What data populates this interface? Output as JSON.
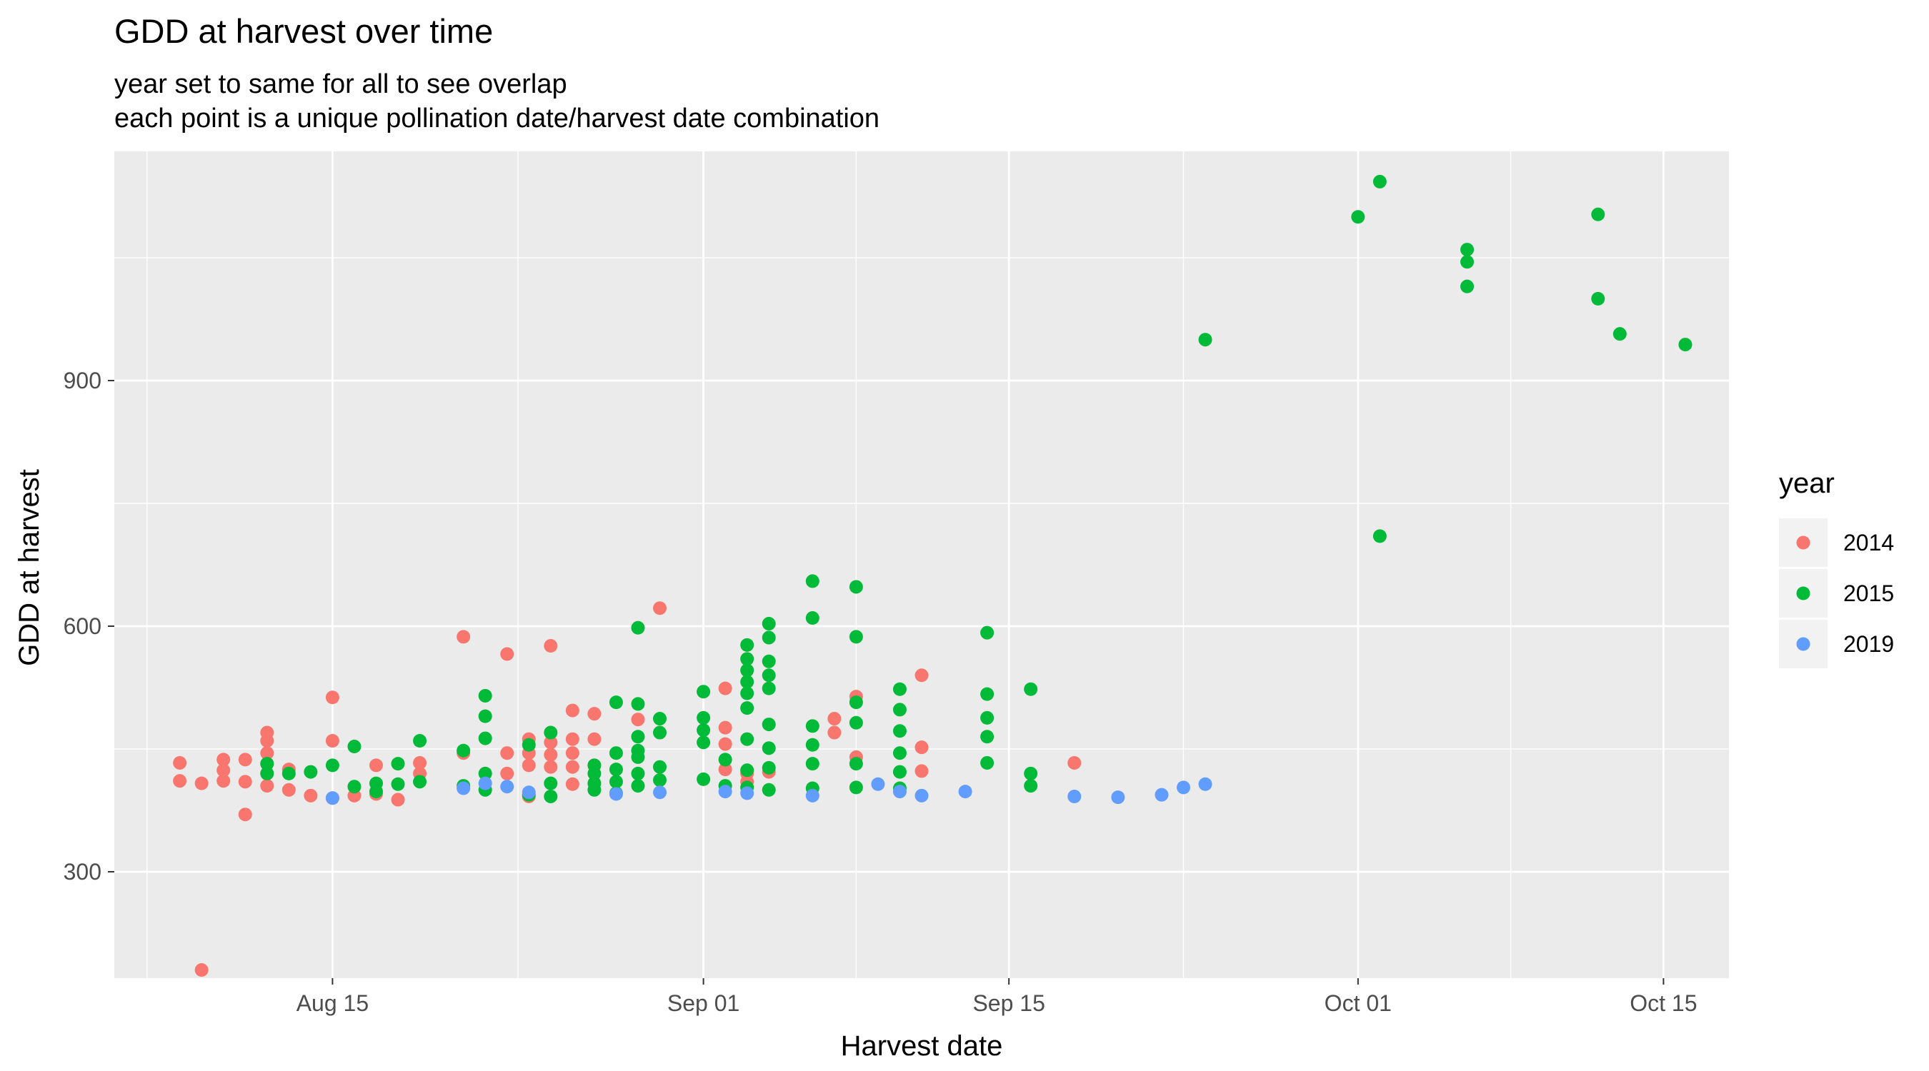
{
  "chart_data": {
    "type": "scatter",
    "title": "GDD at harvest over time",
    "subtitle_lines": [
      "year set to same for all to see overlap",
      "each point is a unique pollination date/harvest date combination"
    ],
    "xlabel": "Harvest date",
    "ylabel": "GDD at harvest",
    "x_type": "date",
    "xlim": [
      "2015-08-05",
      "2015-10-18"
    ],
    "ylim": [
      170,
      1180
    ],
    "x_ticks": [
      {
        "value": "2015-08-15",
        "label": "Aug 15"
      },
      {
        "value": "2015-09-01",
        "label": "Sep 01"
      },
      {
        "value": "2015-09-15",
        "label": "Sep 15"
      },
      {
        "value": "2015-10-01",
        "label": "Oct 01"
      },
      {
        "value": "2015-10-15",
        "label": "Oct 15"
      }
    ],
    "y_ticks": [
      {
        "value": 300,
        "label": "300"
      },
      {
        "value": 600,
        "label": "600"
      },
      {
        "value": 900,
        "label": "900"
      }
    ],
    "grid": true,
    "legend": {
      "title": "year",
      "position": "right"
    },
    "series": [
      {
        "name": "2014",
        "color": "#F8766D",
        "points": [
          [
            "2015-08-08",
            433
          ],
          [
            "2015-08-08",
            411
          ],
          [
            "2015-08-09",
            408
          ],
          [
            "2015-08-09",
            180
          ],
          [
            "2015-08-10",
            437
          ],
          [
            "2015-08-10",
            424
          ],
          [
            "2015-08-10",
            411
          ],
          [
            "2015-08-11",
            437
          ],
          [
            "2015-08-11",
            410
          ],
          [
            "2015-08-11",
            370
          ],
          [
            "2015-08-12",
            470
          ],
          [
            "2015-08-12",
            460
          ],
          [
            "2015-08-12",
            445
          ],
          [
            "2015-08-12",
            432
          ],
          [
            "2015-08-12",
            420
          ],
          [
            "2015-08-12",
            405
          ],
          [
            "2015-08-13",
            425
          ],
          [
            "2015-08-13",
            400
          ],
          [
            "2015-08-14",
            393
          ],
          [
            "2015-08-15",
            513
          ],
          [
            "2015-08-15",
            460
          ],
          [
            "2015-08-15",
            390
          ],
          [
            "2015-08-16",
            393
          ],
          [
            "2015-08-17",
            430
          ],
          [
            "2015-08-17",
            395
          ],
          [
            "2015-08-18",
            388
          ],
          [
            "2015-08-19",
            433
          ],
          [
            "2015-08-19",
            420
          ],
          [
            "2015-08-21",
            587
          ],
          [
            "2015-08-21",
            445
          ],
          [
            "2015-08-23",
            566
          ],
          [
            "2015-08-23",
            445
          ],
          [
            "2015-08-23",
            420
          ],
          [
            "2015-08-24",
            462
          ],
          [
            "2015-08-24",
            445
          ],
          [
            "2015-08-24",
            430
          ],
          [
            "2015-08-24",
            392
          ],
          [
            "2015-08-25",
            576
          ],
          [
            "2015-08-25",
            458
          ],
          [
            "2015-08-25",
            443
          ],
          [
            "2015-08-25",
            428
          ],
          [
            "2015-08-26",
            497
          ],
          [
            "2015-08-26",
            462
          ],
          [
            "2015-08-26",
            445
          ],
          [
            "2015-08-26",
            428
          ],
          [
            "2015-08-26",
            407
          ],
          [
            "2015-08-27",
            493
          ],
          [
            "2015-08-27",
            462
          ],
          [
            "2015-08-27",
            430
          ],
          [
            "2015-08-29",
            486
          ],
          [
            "2015-08-30",
            622
          ],
          [
            "2015-09-02",
            524
          ],
          [
            "2015-09-02",
            476
          ],
          [
            "2015-09-02",
            456
          ],
          [
            "2015-09-02",
            425
          ],
          [
            "2015-09-03",
            420
          ],
          [
            "2015-09-03",
            410
          ],
          [
            "2015-09-04",
            422
          ],
          [
            "2015-09-07",
            487
          ],
          [
            "2015-09-07",
            470
          ],
          [
            "2015-09-08",
            514
          ],
          [
            "2015-09-08",
            440
          ],
          [
            "2015-09-11",
            540
          ],
          [
            "2015-09-11",
            452
          ],
          [
            "2015-09-11",
            423
          ],
          [
            "2015-09-18",
            433
          ]
        ]
      },
      {
        "name": "2015",
        "color": "#00BA38",
        "points": [
          [
            "2015-08-12",
            432
          ],
          [
            "2015-08-12",
            420
          ],
          [
            "2015-08-13",
            420
          ],
          [
            "2015-08-14",
            422
          ],
          [
            "2015-08-15",
            430
          ],
          [
            "2015-08-16",
            453
          ],
          [
            "2015-08-16",
            404
          ],
          [
            "2015-08-17",
            408
          ],
          [
            "2015-08-17",
            398
          ],
          [
            "2015-08-18",
            432
          ],
          [
            "2015-08-18",
            407
          ],
          [
            "2015-08-19",
            460
          ],
          [
            "2015-08-19",
            410
          ],
          [
            "2015-08-21",
            448
          ],
          [
            "2015-08-21",
            405
          ],
          [
            "2015-08-22",
            515
          ],
          [
            "2015-08-22",
            490
          ],
          [
            "2015-08-22",
            463
          ],
          [
            "2015-08-22",
            420
          ],
          [
            "2015-08-22",
            400
          ],
          [
            "2015-08-24",
            455
          ],
          [
            "2015-08-24",
            394
          ],
          [
            "2015-08-25",
            470
          ],
          [
            "2015-08-25",
            408
          ],
          [
            "2015-08-25",
            392
          ],
          [
            "2015-08-27",
            430
          ],
          [
            "2015-08-27",
            420
          ],
          [
            "2015-08-27",
            408
          ],
          [
            "2015-08-27",
            400
          ],
          [
            "2015-08-28",
            507
          ],
          [
            "2015-08-28",
            445
          ],
          [
            "2015-08-28",
            425
          ],
          [
            "2015-08-28",
            410
          ],
          [
            "2015-08-28",
            396
          ],
          [
            "2015-08-29",
            598
          ],
          [
            "2015-08-29",
            505
          ],
          [
            "2015-08-29",
            465
          ],
          [
            "2015-08-29",
            448
          ],
          [
            "2015-08-29",
            440
          ],
          [
            "2015-08-29",
            420
          ],
          [
            "2015-08-29",
            405
          ],
          [
            "2015-08-30",
            487
          ],
          [
            "2015-08-30",
            470
          ],
          [
            "2015-08-30",
            428
          ],
          [
            "2015-08-30",
            412
          ],
          [
            "2015-09-01",
            520
          ],
          [
            "2015-09-01",
            488
          ],
          [
            "2015-09-01",
            473
          ],
          [
            "2015-09-01",
            458
          ],
          [
            "2015-09-01",
            413
          ],
          [
            "2015-09-02",
            437
          ],
          [
            "2015-09-02",
            405
          ],
          [
            "2015-09-03",
            577
          ],
          [
            "2015-09-03",
            560
          ],
          [
            "2015-09-03",
            546
          ],
          [
            "2015-09-03",
            532
          ],
          [
            "2015-09-03",
            518
          ],
          [
            "2015-09-03",
            500
          ],
          [
            "2015-09-03",
            462
          ],
          [
            "2015-09-03",
            424
          ],
          [
            "2015-09-03",
            403
          ],
          [
            "2015-09-04",
            603
          ],
          [
            "2015-09-04",
            586
          ],
          [
            "2015-09-04",
            557
          ],
          [
            "2015-09-04",
            540
          ],
          [
            "2015-09-04",
            524
          ],
          [
            "2015-09-04",
            480
          ],
          [
            "2015-09-04",
            451
          ],
          [
            "2015-09-04",
            427
          ],
          [
            "2015-09-04",
            400
          ],
          [
            "2015-09-06",
            655
          ],
          [
            "2015-09-06",
            610
          ],
          [
            "2015-09-06",
            478
          ],
          [
            "2015-09-06",
            455
          ],
          [
            "2015-09-06",
            432
          ],
          [
            "2015-09-06",
            402
          ],
          [
            "2015-09-08",
            648
          ],
          [
            "2015-09-08",
            587
          ],
          [
            "2015-09-08",
            507
          ],
          [
            "2015-09-08",
            482
          ],
          [
            "2015-09-08",
            432
          ],
          [
            "2015-09-08",
            403
          ],
          [
            "2015-09-10",
            523
          ],
          [
            "2015-09-10",
            498
          ],
          [
            "2015-09-10",
            472
          ],
          [
            "2015-09-10",
            445
          ],
          [
            "2015-09-10",
            422
          ],
          [
            "2015-09-10",
            402
          ],
          [
            "2015-09-14",
            592
          ],
          [
            "2015-09-14",
            517
          ],
          [
            "2015-09-14",
            488
          ],
          [
            "2015-09-14",
            465
          ],
          [
            "2015-09-14",
            433
          ],
          [
            "2015-09-16",
            523
          ],
          [
            "2015-09-16",
            420
          ],
          [
            "2015-09-16",
            405
          ],
          [
            "2015-09-24",
            950
          ],
          [
            "2015-10-01",
            1100
          ],
          [
            "2015-10-02",
            1143
          ],
          [
            "2015-10-02",
            710
          ],
          [
            "2015-10-06",
            1060
          ],
          [
            "2015-10-06",
            1045
          ],
          [
            "2015-10-06",
            1015
          ],
          [
            "2015-10-12",
            1103
          ],
          [
            "2015-10-12",
            1000
          ],
          [
            "2015-10-13",
            957
          ],
          [
            "2015-10-16",
            944
          ]
        ]
      },
      {
        "name": "2019",
        "color": "#619CFF",
        "points": [
          [
            "2015-08-15",
            390
          ],
          [
            "2015-08-21",
            402
          ],
          [
            "2015-08-22",
            408
          ],
          [
            "2015-08-23",
            404
          ],
          [
            "2015-08-24",
            397
          ],
          [
            "2015-08-28",
            395
          ],
          [
            "2015-08-30",
            397
          ],
          [
            "2015-09-02",
            398
          ],
          [
            "2015-09-03",
            396
          ],
          [
            "2015-09-06",
            393
          ],
          [
            "2015-09-09",
            407
          ],
          [
            "2015-09-10",
            398
          ],
          [
            "2015-09-11",
            393
          ],
          [
            "2015-09-13",
            398
          ],
          [
            "2015-09-18",
            392
          ],
          [
            "2015-09-20",
            391
          ],
          [
            "2015-09-22",
            394
          ],
          [
            "2015-09-23",
            403
          ],
          [
            "2015-09-24",
            407
          ]
        ]
      }
    ]
  }
}
